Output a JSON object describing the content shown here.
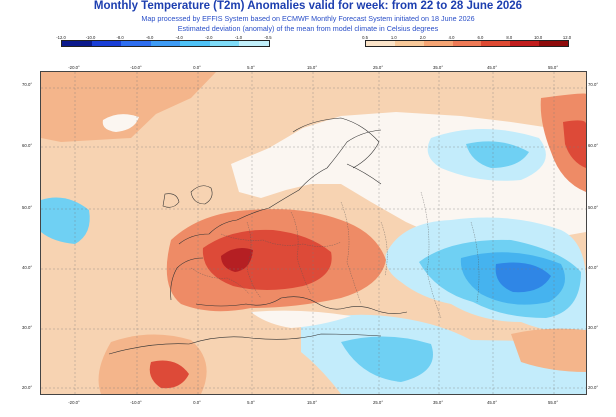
{
  "title": "Monthly Temperature (T2m) Anomalies valid for week: from 22 to 28 June 2026",
  "subtitle_1": "Map processed by EFFIS System based on ECMWF Monthly Forecast System initiated on 18 June 2026",
  "subtitle_2": "Estimated deviation (anomaly) of the mean from model climate in Celsius degrees",
  "legend": {
    "cold": {
      "labels": [
        "-12.0",
        "-10.0",
        "-8.0",
        "-6.0",
        "-4.0",
        "-2.0",
        "-1.0",
        "-0.5"
      ],
      "colors": [
        "#0c1a8c",
        "#1a3fd6",
        "#2f6ff0",
        "#3f9cf5",
        "#4fc3f7",
        "#7fdcf8",
        "#c2f0fb"
      ]
    },
    "warm": {
      "labels": [
        "0.5",
        "1.0",
        "2.0",
        "4.0",
        "6.0",
        "8.0",
        "10.0",
        "12.0"
      ],
      "colors": [
        "#fbe4c9",
        "#f8c99a",
        "#f5a574",
        "#ee7a56",
        "#de4a33",
        "#c11d1d",
        "#8e0b0b"
      ]
    }
  },
  "map": {
    "lat_labels": [
      "70.0°",
      "60.0°",
      "50.0°",
      "40.0°",
      "30.0°",
      "20.0°"
    ],
    "lon_labels_top": [
      "-20.0°",
      "-10.0°",
      "0.0°",
      "5.0°",
      "15.0°",
      "25.0°",
      "35.0°",
      "45.0°",
      "55.0°"
    ],
    "lon_labels_bottom": [
      "-20.0°",
      "-10.0°",
      "0.0°",
      "5.0°",
      "15.0°",
      "25.0°",
      "35.0°",
      "45.0°",
      "55.0°"
    ],
    "colors": {
      "ocean_warm": "#f7d3b2",
      "land_neutral": "#fbf6f1",
      "warm_light": "#f4b58b",
      "warm_mid": "#ee8b66",
      "warm_strong": "#dd4a38",
      "warm_core": "#b51f23",
      "cool_light": "#c3ecfb",
      "cool_mid": "#6fd0f3",
      "cool_strong": "#45b3ef",
      "cool_deep": "#2f86e6",
      "border": "#333333"
    }
  }
}
